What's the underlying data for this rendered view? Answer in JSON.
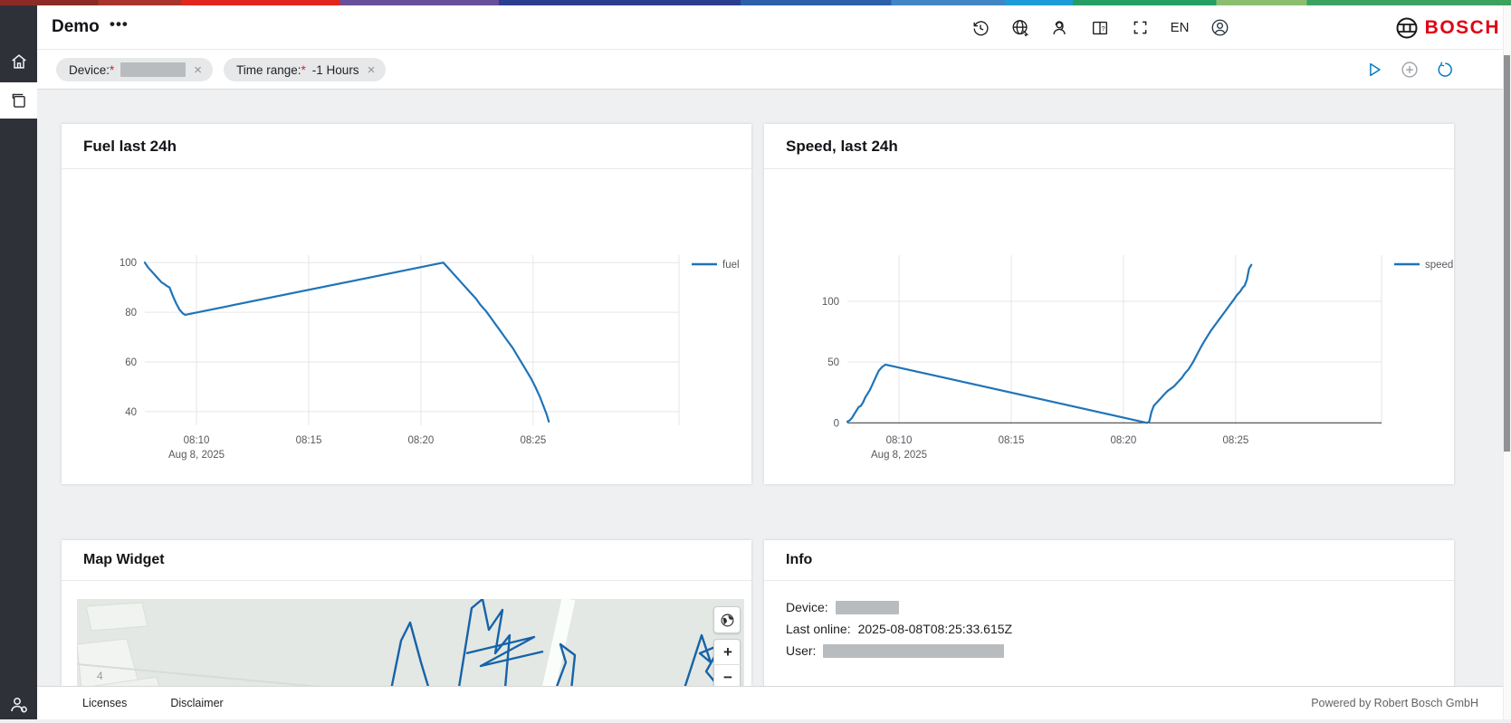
{
  "theme": {
    "bosch_red": "#e20015",
    "accent_blue": "#007bc0",
    "sidebar_bg": "#2e3238",
    "content_bg": "#eef0f1",
    "redacted_gray": "#b9bcbe",
    "supergraphic": [
      [
        "#8c2a26",
        6.5
      ],
      [
        "#a8342c",
        12
      ],
      [
        "#e0261d",
        22.5
      ],
      [
        "#66509a",
        33
      ],
      [
        "#2a3e90",
        49
      ],
      [
        "#2e5fab",
        59
      ],
      [
        "#4186c4",
        66.5
      ],
      [
        "#1b9cd8",
        71
      ],
      [
        "#249e62",
        80.5
      ],
      [
        "#8cbe70",
        86.5
      ],
      [
        "#3ca35e",
        100
      ]
    ]
  },
  "topbar": {
    "title": "Demo",
    "menu": "•••",
    "language": "EN",
    "brand": "BOSCH"
  },
  "toolbar": {
    "chips": [
      {
        "label": "Device:",
        "required": "*",
        "value": "",
        "redacted": true,
        "close": "×"
      },
      {
        "label": "Time range:",
        "required": "*",
        "value": "-1 Hours",
        "redacted": false,
        "close": "×"
      }
    ]
  },
  "widgets": {
    "map": {
      "title": "Map Widget",
      "map_label": "4",
      "zoom_in": "+",
      "zoom_out": "−"
    },
    "info": {
      "title": "Info",
      "rows": [
        {
          "label": "Device:",
          "value": "",
          "redacted": true
        },
        {
          "label": "Last online:",
          "value": "2025-08-08T08:25:33.615Z",
          "redacted": false
        },
        {
          "label": "User:",
          "value": "",
          "redacted": true
        }
      ]
    }
  },
  "footer": {
    "links": [
      "Licenses",
      "Disclaimer"
    ],
    "powered_by": "Powered by Robert Bosch GmbH"
  },
  "chart_data": [
    {
      "type": "line",
      "title": "Fuel last 24h",
      "legend": {
        "label": "fuel",
        "position": "right"
      },
      "grid": true,
      "zeroline": false,
      "x_axis": {
        "tick_labels": [
          "08:10",
          "08:15",
          "08:20",
          "08:25"
        ],
        "tick_minutes": [
          490,
          495,
          500,
          505
        ],
        "range_minutes": [
          487.7,
          511.5
        ],
        "subtitle": "Aug 8, 2025"
      },
      "y_axis": {
        "ticks": [
          40,
          60,
          80,
          100
        ],
        "range": [
          34.5,
          103
        ]
      },
      "series": [
        {
          "name": "fuel",
          "color": "#1f74b8",
          "x": [
            487.7,
            487.85,
            488.0,
            488.15,
            488.3,
            488.45,
            488.55,
            488.7,
            488.8,
            488.95,
            489.1,
            489.25,
            489.4,
            489.5,
            501.0,
            501.2,
            501.4,
            501.6,
            501.8,
            502.0,
            502.2,
            502.45,
            502.65,
            502.9,
            503.1,
            503.3,
            503.5,
            503.7,
            503.9,
            504.1,
            504.3,
            504.5,
            504.7,
            504.9,
            505.1,
            505.3,
            505.45,
            505.6,
            505.7
          ],
          "y": [
            100,
            98,
            96.5,
            95,
            93.5,
            92,
            91.5,
            90.5,
            90,
            86.5,
            83.5,
            81,
            79.5,
            79,
            100,
            98,
            96,
            94,
            92,
            90,
            88,
            85.5,
            83,
            80.5,
            78,
            75.5,
            73,
            70.5,
            68,
            65.5,
            62.5,
            59.5,
            56.5,
            53.5,
            50,
            46,
            42.5,
            39,
            36
          ]
        }
      ]
    },
    {
      "type": "line",
      "title": "Speed, last 24h",
      "legend": {
        "label": "speed",
        "position": "right"
      },
      "grid": true,
      "zeroline": true,
      "x_axis": {
        "tick_labels": [
          "08:10",
          "08:15",
          "08:20",
          "08:25"
        ],
        "tick_minutes": [
          490,
          495,
          500,
          505
        ],
        "range_minutes": [
          487.7,
          511.5
        ],
        "subtitle": "Aug 8, 2025"
      },
      "y_axis": {
        "ticks": [
          0,
          50,
          100
        ],
        "range": [
          -2,
          138
        ]
      },
      "series": [
        {
          "name": "speed",
          "color": "#1f74b8",
          "x": [
            487.7,
            487.8,
            487.9,
            488.0,
            488.1,
            488.2,
            488.3,
            488.4,
            488.5,
            488.6,
            488.7,
            488.8,
            488.9,
            489.0,
            489.1,
            489.25,
            489.4,
            501.05,
            501.15,
            501.25,
            501.35,
            501.5,
            501.65,
            501.8,
            501.95,
            502.1,
            502.25,
            502.4,
            502.6,
            502.75,
            502.9,
            503.1,
            503.3,
            503.5,
            503.7,
            503.9,
            504.1,
            504.3,
            504.5,
            504.7,
            504.9,
            505.05,
            505.2,
            505.3,
            505.4,
            505.5,
            505.6,
            505.7
          ],
          "y": [
            1,
            2,
            4,
            7,
            10,
            13,
            14,
            17,
            21,
            24,
            27,
            31,
            35,
            39,
            43,
            46,
            48,
            0,
            1,
            9,
            14,
            17,
            20,
            23,
            26,
            28,
            30,
            33,
            37,
            41,
            44,
            50,
            57,
            64,
            70,
            76,
            81,
            86,
            91,
            96,
            101,
            105,
            108,
            111,
            113,
            118,
            127,
            130
          ]
        }
      ]
    }
  ]
}
